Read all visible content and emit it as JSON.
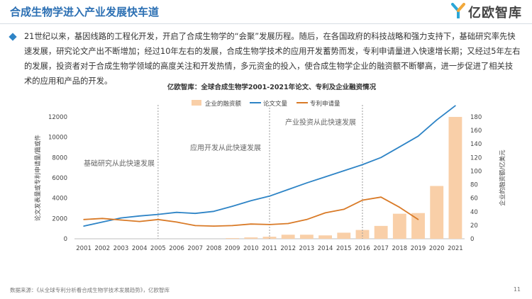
{
  "header": {
    "title": "合成生物学进入产业发展快车道",
    "logo_text": "亿欧智库"
  },
  "paragraph": "21世纪以来，基因线路的工程化开发，开启了合成生物学的“会聚”发展历程。随后，在各国政府的科技战略和强力支持下，基础研究率先快速发展，研究论文产出不断增加；经过10年左右的发展，合成生物学技术的应用开发蓄势而发，专利申请量进入快速增长期；又经过5年左右的发展，投资者对于合成生物学领域的高度关注和开发热情，多元资金的投入，使合成生物学企业的融资额不断攀高，进一步促进了相关技术的应用和产品的开发。",
  "footer": {
    "source": "数据来源：《从全球专利分析看合成生物学技术发展趋势》，亿欧智库",
    "page": "11"
  },
  "colors": {
    "title": "#2b6fb3",
    "bar": "#f9cfa8",
    "paper_line": "#2e84c6",
    "patent_line": "#d97a27",
    "bullet": "#2e84c6"
  },
  "chart_data": {
    "type": "bar+line",
    "title": "亿欧智库：全球合成生物学2001-2021年论文、专利及企业融资情况",
    "categories": [
      "2001",
      "2002",
      "2003",
      "2004",
      "2005",
      "2006",
      "2007",
      "2008",
      "2009",
      "2010",
      "2011",
      "2012",
      "2013",
      "2014",
      "2015",
      "2016",
      "2017",
      "2018",
      "2019",
      "2020",
      "2021"
    ],
    "left_axis": {
      "label": "论文发表量或专利申请量/篇或件",
      "ticks": [
        0,
        2000,
        4000,
        6000,
        8000,
        10000,
        12000
      ],
      "ylim": [
        0,
        12000
      ]
    },
    "right_axis": {
      "label": "企业的融资额/亿美元",
      "ticks": [
        0,
        20,
        40,
        60,
        80,
        100,
        120,
        140,
        160,
        180
      ],
      "ylim": [
        0,
        180
      ]
    },
    "series": [
      {
        "name": "企业的融资额",
        "type": "bar",
        "axis": "right",
        "values": [
          null,
          null,
          null,
          null,
          null,
          null,
          null,
          null,
          1,
          2,
          3,
          6,
          6,
          5,
          9,
          13,
          19,
          37,
          38,
          78,
          180
        ]
      },
      {
        "name": "论文文量",
        "type": "line",
        "axis": "left",
        "values": [
          1250,
          1650,
          2050,
          2250,
          2400,
          2600,
          2500,
          2700,
          3200,
          3750,
          4200,
          4850,
          5500,
          6100,
          6700,
          7300,
          8000,
          9050,
          10100,
          11700,
          13100
        ]
      },
      {
        "name": "专利申请量",
        "type": "line",
        "axis": "left",
        "values": [
          1900,
          2000,
          1850,
          1700,
          1900,
          1650,
          1300,
          1250,
          1300,
          1450,
          1400,
          1500,
          1900,
          2550,
          2900,
          3800,
          4100,
          3100,
          1900,
          null,
          null
        ]
      }
    ],
    "legend_position": "top-center",
    "annotations": [
      {
        "text": "基础研究从此快速发展"
      },
      {
        "text": "应用开发从此快速发展"
      },
      {
        "text": "产业投资从此快速发展"
      }
    ],
    "divider_years": [
      "2005",
      "2011",
      "2016"
    ],
    "grid": false
  }
}
